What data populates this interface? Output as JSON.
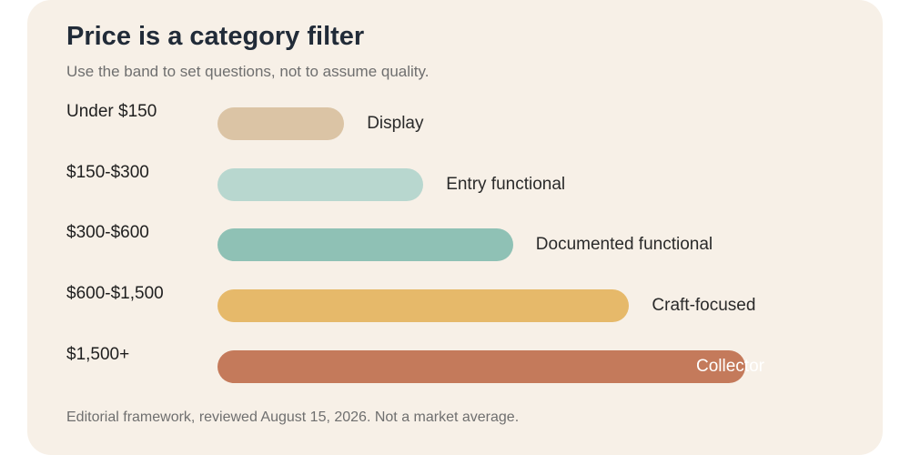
{
  "chart_data": {
    "type": "bar",
    "title": "Price is a category filter",
    "subtitle": "Use the band to set questions, not to assume quality.",
    "footer": "Editorial framework, reviewed August 15, 2026. Not a market average.",
    "categories": [
      "Under $150",
      "$150-$300",
      "$300-$600",
      "$600-$1,500",
      "$1,500+"
    ],
    "band_labels": [
      "Display",
      "Entry functional",
      "Documented functional",
      "Craft-focused",
      "Collector"
    ],
    "values": [
      24,
      39,
      56,
      78,
      100
    ],
    "colors": [
      "#dbc4a5",
      "#b8d7cf",
      "#8fc1b5",
      "#e6b96a",
      "#c47a5b"
    ],
    "orientation": "horizontal",
    "xlim": [
      0,
      100
    ]
  }
}
